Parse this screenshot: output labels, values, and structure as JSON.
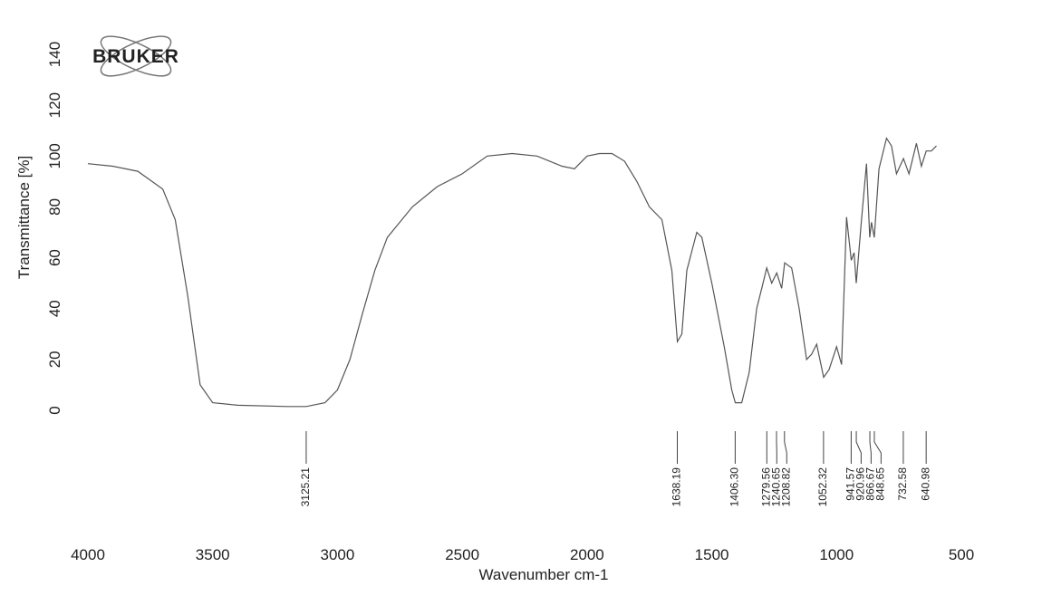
{
  "chart_data": {
    "type": "line",
    "logo": "BRUKER",
    "x_label": "Wavenumber cm-1",
    "y_label": "Transmittance [%]",
    "xlim": [
      4000,
      500
    ],
    "ylim": [
      0,
      140
    ],
    "xticks": [
      4000,
      3500,
      3000,
      2500,
      2000,
      1500,
      1000,
      500
    ],
    "yticks": [
      0,
      20,
      40,
      60,
      80,
      100,
      120,
      140
    ],
    "x": [
      4000,
      3900,
      3800,
      3700,
      3650,
      3600,
      3550,
      3500,
      3400,
      3200,
      3125,
      3050,
      3000,
      2950,
      2900,
      2850,
      2800,
      2700,
      2600,
      2500,
      2400,
      2300,
      2200,
      2100,
      2050,
      2000,
      1950,
      1900,
      1850,
      1800,
      1750,
      1700,
      1660,
      1638,
      1620,
      1600,
      1560,
      1540,
      1500,
      1450,
      1420,
      1406,
      1380,
      1350,
      1320,
      1300,
      1280,
      1260,
      1240,
      1220,
      1208,
      1180,
      1150,
      1120,
      1100,
      1080,
      1052,
      1030,
      1000,
      980,
      960,
      941,
      930,
      921,
      900,
      880,
      867,
      860,
      849,
      830,
      800,
      780,
      760,
      732,
      710,
      680,
      660,
      641,
      620,
      600
    ],
    "series": [
      {
        "color": "#555555",
        "values": [
          97,
          96,
          94,
          87,
          75,
          45,
          10,
          3,
          2,
          1.5,
          1.5,
          3,
          8,
          20,
          38,
          55,
          68,
          80,
          88,
          93,
          100,
          101,
          100,
          96,
          95,
          100,
          101,
          101,
          98,
          90,
          80,
          75,
          55,
          27,
          30,
          55,
          70,
          68,
          50,
          25,
          8,
          3,
          3,
          15,
          40,
          48,
          56,
          50,
          54,
          48,
          58,
          56,
          40,
          20,
          22,
          26,
          13,
          16,
          25,
          18,
          76,
          59,
          62,
          50,
          75,
          97,
          68,
          74,
          68,
          95,
          107,
          104,
          93,
          99,
          93,
          105,
          96,
          102,
          102,
          104
        ]
      }
    ],
    "peaks": [
      3125.21,
      1638.19,
      {
        "value": 1406.3,
        "label": "1406.30"
      },
      1279.56,
      1240.65,
      1208.82,
      1052.32,
      941.57,
      920.96,
      866.67,
      848.65,
      732.58,
      640.98
    ]
  }
}
